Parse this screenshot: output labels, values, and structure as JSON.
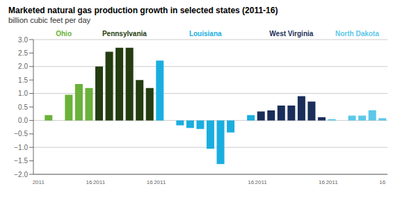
{
  "chart_data": {
    "type": "bar",
    "title": "Marketed natural gas production growth in selected states (2011-16)",
    "subtitle": "billion cubic feet per day",
    "categories": [
      "2011",
      null,
      null,
      null,
      null,
      "16",
      "2011",
      null,
      null,
      null,
      null,
      "16",
      "2011",
      null,
      null,
      null,
      null,
      null,
      null,
      null,
      null,
      "16",
      "2011",
      null,
      null,
      null,
      null,
      null,
      "16",
      "2011",
      null,
      null,
      null,
      null,
      "16"
    ],
    "series": [
      {
        "name": "Ohio",
        "color": "#6ab23a",
        "values": [
          null,
          0.2,
          null,
          0.95,
          1.35,
          1.2,
          null,
          null,
          null,
          null,
          null,
          null,
          null,
          null,
          null,
          null,
          null,
          null,
          null,
          null,
          null,
          null,
          null,
          null,
          null,
          null,
          null,
          null,
          null,
          null,
          null,
          null,
          null,
          null,
          null
        ]
      },
      {
        "name": "Pennsylvania",
        "color": "#243d10",
        "values": [
          null,
          null,
          null,
          null,
          null,
          null,
          2.0,
          2.55,
          2.7,
          2.7,
          1.5,
          1.2,
          null,
          null,
          null,
          null,
          null,
          null,
          null,
          null,
          null,
          null,
          null,
          null,
          null,
          null,
          null,
          null,
          null,
          null,
          null,
          null,
          null,
          null,
          null
        ]
      },
      {
        "name": "Louisiana",
        "color": "#1aaee0",
        "values": [
          null,
          null,
          null,
          null,
          null,
          null,
          null,
          null,
          null,
          null,
          null,
          null,
          2.22,
          null,
          -0.18,
          -0.28,
          -0.32,
          -1.05,
          -1.62,
          -0.45,
          null,
          0.2,
          null,
          null,
          null,
          null,
          null,
          null,
          null,
          null,
          null,
          null,
          null,
          null,
          null
        ]
      },
      {
        "name": "West Virginia",
        "color": "#1a2e5a",
        "values": [
          null,
          null,
          null,
          null,
          null,
          null,
          null,
          null,
          null,
          null,
          null,
          null,
          null,
          null,
          null,
          null,
          null,
          null,
          null,
          null,
          null,
          null,
          0.33,
          0.37,
          0.55,
          0.55,
          0.9,
          0.7,
          0.12,
          null,
          null,
          null,
          null,
          null,
          null
        ]
      },
      {
        "name": "North Dakota",
        "color": "#5cc8e8",
        "values": [
          null,
          null,
          null,
          null,
          null,
          null,
          null,
          null,
          null,
          null,
          null,
          null,
          null,
          null,
          null,
          null,
          null,
          null,
          null,
          null,
          null,
          null,
          null,
          null,
          null,
          null,
          null,
          null,
          null,
          0.05,
          null,
          0.18,
          0.18,
          0.38,
          0.08
        ]
      }
    ],
    "ylim": [
      -2.0,
      3.0
    ],
    "yticks": [
      {
        "value": -2.0,
        "label": "−2.0"
      },
      {
        "value": -1.5,
        "label": "−1.5"
      },
      {
        "value": -1.0,
        "label": "−1.0"
      },
      {
        "value": -0.5,
        "label": "−0.5"
      },
      {
        "value": 0.0,
        "label": "0.0"
      },
      0.5,
      {
        "value": 1.0,
        "label": "1.0"
      },
      1.5,
      {
        "value": 2.0,
        "label": "2.0"
      },
      2.5,
      {
        "value": 3.0,
        "label": "3.0"
      }
    ],
    "grid": true
  }
}
